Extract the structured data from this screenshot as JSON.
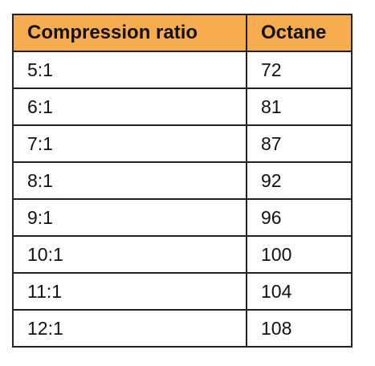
{
  "table": {
    "headers": [
      "Compression ratio",
      "Octane"
    ],
    "header_color": "#f7ad4f",
    "rows": [
      [
        "5:1",
        "72"
      ],
      [
        "6:1",
        "81"
      ],
      [
        "7:1",
        "87"
      ],
      [
        "8:1",
        "92"
      ],
      [
        "9:1",
        "96"
      ],
      [
        "10:1",
        "100"
      ],
      [
        "11:1",
        "104"
      ],
      [
        "12:1",
        "108"
      ]
    ]
  }
}
